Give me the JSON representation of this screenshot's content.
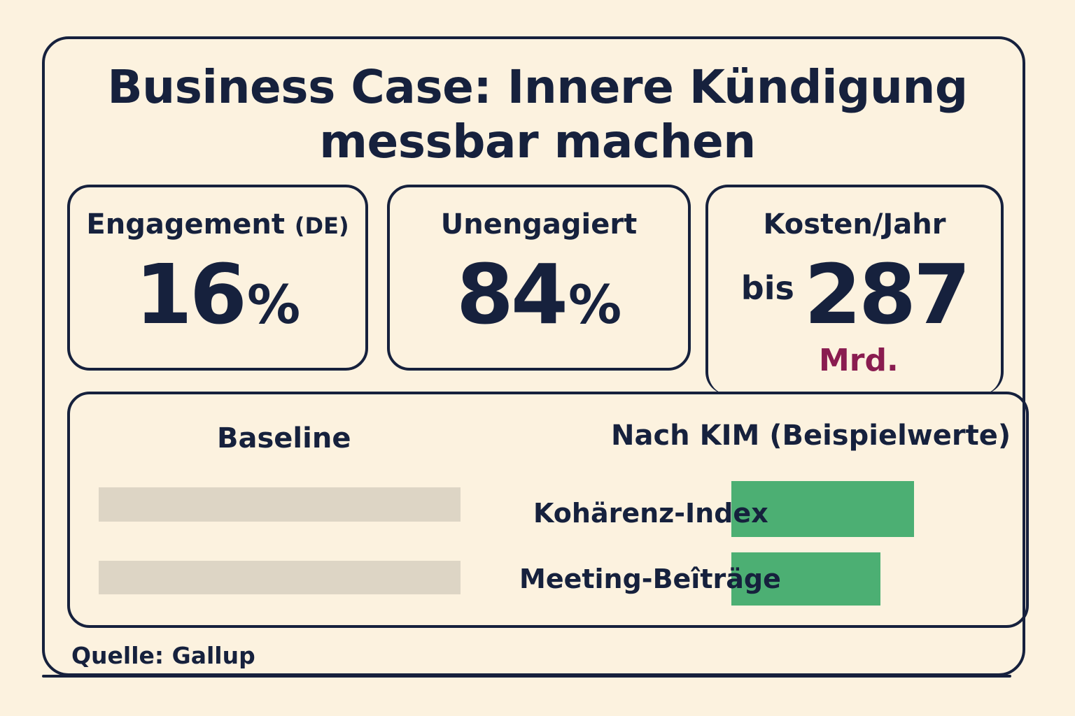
{
  "title_line1": "Business Case:  Innere Kündigung",
  "title_line2": "messbar machen",
  "kpis": [
    {
      "label": "Engagement",
      "label_suffix": "(DE)",
      "value": "16",
      "unit": "%"
    },
    {
      "label": "Unengagiert",
      "value": "84",
      "unit": "%"
    },
    {
      "label": "Kosten/Jahr",
      "prefix": "bis",
      "value": "287",
      "sub": "Mrd."
    }
  ],
  "comparison": {
    "baseline_heading": "Baseline",
    "after_heading": "Nach KIM (Beispielwerte)"
  },
  "chart_data": {
    "type": "bar",
    "categories": [
      "Kohärenz-Index",
      "Meeting-Beîträge"
    ],
    "series": [
      {
        "name": "Baseline",
        "values": [
          1.0,
          1.0
        ]
      },
      {
        "name": "Nach KIM (Beispielwerte)",
        "values": [
          0.71,
          0.58
        ]
      }
    ],
    "colors": {
      "baseline": "#ddd5c5",
      "after": "#4caf73"
    },
    "title": "",
    "xlabel": "",
    "ylabel": ""
  },
  "source": "Quelle: Gallup"
}
